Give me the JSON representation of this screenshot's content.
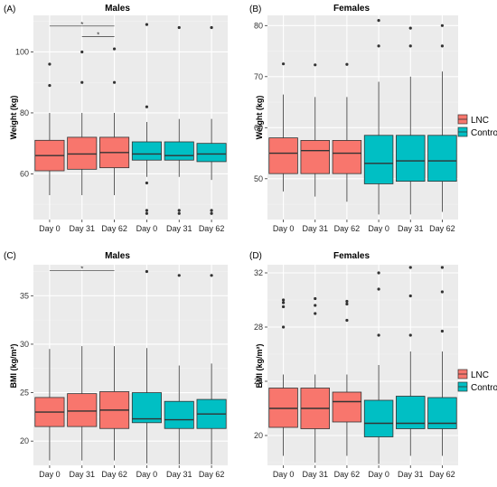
{
  "colors": {
    "lnc": "#f8766d",
    "control": "#00bfc4",
    "panel_bg": "#ebebeb",
    "grid_major": "#ffffff",
    "grid_minor": "#f4f4f4"
  },
  "legend": {
    "items": [
      {
        "label": "LNC",
        "group": "lnc"
      },
      {
        "label": "Control",
        "group": "control"
      }
    ]
  },
  "chart_data": [
    {
      "id": "A",
      "panel_label": "(A)",
      "type": "box",
      "title": "Males",
      "xlabel": "",
      "ylabel": "Weight (kg)",
      "ylim": [
        45,
        112
      ],
      "yticks": [
        60,
        80,
        100
      ],
      "ytick_labels": [
        "60",
        "80",
        "100"
      ],
      "categories": [
        "Day 0",
        "Day 31",
        "Day 62",
        "Day 0",
        "Day 31",
        "Day 62"
      ],
      "boxes": [
        {
          "group": "lnc",
          "whisker_low": 53,
          "q1": 61,
          "median": 66,
          "q3": 71,
          "whisker_high": 80,
          "outliers": [
            89,
            96
          ]
        },
        {
          "group": "lnc",
          "whisker_low": 53,
          "q1": 61.5,
          "median": 66.5,
          "q3": 72,
          "whisker_high": 80,
          "outliers": [
            90,
            100
          ]
        },
        {
          "group": "lnc",
          "whisker_low": 53,
          "q1": 62,
          "median": 67,
          "q3": 72,
          "whisker_high": 80,
          "outliers": [
            90,
            101
          ]
        },
        {
          "group": "control",
          "whisker_low": 59,
          "q1": 64.5,
          "median": 66.5,
          "q3": 70.5,
          "whisker_high": 77,
          "outliers": [
            47,
            48,
            57,
            82,
            109
          ]
        },
        {
          "group": "control",
          "whisker_low": 59,
          "q1": 64.5,
          "median": 66,
          "q3": 70.5,
          "whisker_high": 78,
          "outliers": [
            47,
            48,
            108
          ]
        },
        {
          "group": "control",
          "whisker_low": 58,
          "q1": 64,
          "median": 66.5,
          "q3": 70,
          "whisker_high": 78,
          "outliers": [
            47,
            48,
            108
          ]
        }
      ],
      "annotations": [
        {
          "text": "*",
          "from": 0,
          "to": 2,
          "y": 108.5
        },
        {
          "text": "*",
          "from": 1,
          "to": 2,
          "y": 105
        }
      ]
    },
    {
      "id": "B",
      "panel_label": "(B)",
      "type": "box",
      "title": "Females",
      "xlabel": "",
      "ylabel": "Weight (kg)",
      "ylim": [
        42,
        82
      ],
      "yticks": [
        50,
        60,
        70,
        80
      ],
      "ytick_labels": [
        "50",
        "60",
        "70",
        "80"
      ],
      "categories": [
        "Day 0",
        "Day 31",
        "Day 62",
        "Day 0",
        "Day 31",
        "Day 62"
      ],
      "boxes": [
        {
          "group": "lnc",
          "whisker_low": 47.5,
          "q1": 51,
          "median": 55,
          "q3": 58,
          "whisker_high": 66.5,
          "outliers": [
            72.5
          ]
        },
        {
          "group": "lnc",
          "whisker_low": 46.5,
          "q1": 51,
          "median": 55.5,
          "q3": 57.5,
          "whisker_high": 66,
          "outliers": [
            72.3
          ]
        },
        {
          "group": "lnc",
          "whisker_low": 45.5,
          "q1": 51,
          "median": 55,
          "q3": 57.5,
          "whisker_high": 66,
          "outliers": [
            72.4
          ]
        },
        {
          "group": "control",
          "whisker_low": 43,
          "q1": 49,
          "median": 53,
          "q3": 58.5,
          "whisker_high": 69,
          "outliers": [
            76,
            81
          ]
        },
        {
          "group": "control",
          "whisker_low": 43,
          "q1": 49.5,
          "median": 53.5,
          "q3": 58.5,
          "whisker_high": 70,
          "outliers": [
            76,
            79.5
          ]
        },
        {
          "group": "control",
          "whisker_low": 43.5,
          "q1": 49.5,
          "median": 53.5,
          "q3": 58.5,
          "whisker_high": 71,
          "outliers": [
            76,
            80
          ]
        }
      ],
      "annotations": []
    },
    {
      "id": "C",
      "panel_label": "(C)",
      "type": "box",
      "title": "Males",
      "xlabel": "",
      "ylabel": "BMI (kg/m²)",
      "ylim": [
        17.5,
        38.2
      ],
      "yticks": [
        20,
        25,
        30,
        35
      ],
      "ytick_labels": [
        "20",
        "25",
        "30",
        "35"
      ],
      "categories": [
        "Day 0",
        "Day 31",
        "Day 62",
        "Day 0",
        "Day 31",
        "Day 62"
      ],
      "boxes": [
        {
          "group": "lnc",
          "whisker_low": 18,
          "q1": 21.5,
          "median": 23,
          "q3": 24.5,
          "whisker_high": 29.5,
          "outliers": []
        },
        {
          "group": "lnc",
          "whisker_low": 18,
          "q1": 21.5,
          "median": 23.1,
          "q3": 24.9,
          "whisker_high": 29.8,
          "outliers": []
        },
        {
          "group": "lnc",
          "whisker_low": 18,
          "q1": 21.3,
          "median": 23.2,
          "q3": 25.1,
          "whisker_high": 29.8,
          "outliers": []
        },
        {
          "group": "control",
          "whisker_low": 17.7,
          "q1": 21.9,
          "median": 22.3,
          "q3": 25,
          "whisker_high": 29.6,
          "outliers": [
            37.5
          ]
        },
        {
          "group": "control",
          "whisker_low": 17.6,
          "q1": 21.3,
          "median": 22.2,
          "q3": 24.1,
          "whisker_high": 27.8,
          "outliers": [
            37.1
          ]
        },
        {
          "group": "control",
          "whisker_low": 17.6,
          "q1": 21.3,
          "median": 22.8,
          "q3": 24.3,
          "whisker_high": 28,
          "outliers": [
            37.1
          ]
        }
      ],
      "annotations": [
        {
          "text": "*",
          "from": 0,
          "to": 2,
          "y": 37.6
        }
      ]
    },
    {
      "id": "D",
      "panel_label": "(D)",
      "type": "box",
      "title": "Females",
      "xlabel": "",
      "ylabel": "BMI (kg/m²)",
      "ylim": [
        17.8,
        32.6
      ],
      "yticks": [
        20,
        24,
        28,
        32
      ],
      "ytick_labels": [
        "20",
        "24",
        "28",
        "32"
      ],
      "categories": [
        "Day 0",
        "Day 31",
        "Day 62",
        "Day 0",
        "Day 31",
        "Day 62"
      ],
      "boxes": [
        {
          "group": "lnc",
          "whisker_low": 18.5,
          "q1": 20.6,
          "median": 22,
          "q3": 23.5,
          "whisker_high": 24.5,
          "outliers": [
            28,
            29.5,
            29.8,
            30
          ]
        },
        {
          "group": "lnc",
          "whisker_low": 18,
          "q1": 20.5,
          "median": 22,
          "q3": 23.5,
          "whisker_high": 24.5,
          "outliers": [
            29,
            29.6,
            30.1
          ]
        },
        {
          "group": "lnc",
          "whisker_low": 18.5,
          "q1": 21,
          "median": 22.5,
          "q3": 23.2,
          "whisker_high": 24.5,
          "outliers": [
            28.5,
            29.7,
            29.9
          ]
        },
        {
          "group": "control",
          "whisker_low": 17.9,
          "q1": 19.9,
          "median": 20.9,
          "q3": 22.6,
          "whisker_high": 25.2,
          "outliers": [
            27.4,
            30.8,
            32
          ]
        },
        {
          "group": "control",
          "whisker_low": 18.5,
          "q1": 20.5,
          "median": 20.9,
          "q3": 22.9,
          "whisker_high": 26.2,
          "outliers": [
            27.4,
            30.3,
            32.4
          ]
        },
        {
          "group": "control",
          "whisker_low": 18.5,
          "q1": 20.5,
          "median": 20.9,
          "q3": 22.8,
          "whisker_high": 26.2,
          "outliers": [
            27.7,
            30.6,
            32.4
          ]
        }
      ],
      "annotations": []
    }
  ]
}
